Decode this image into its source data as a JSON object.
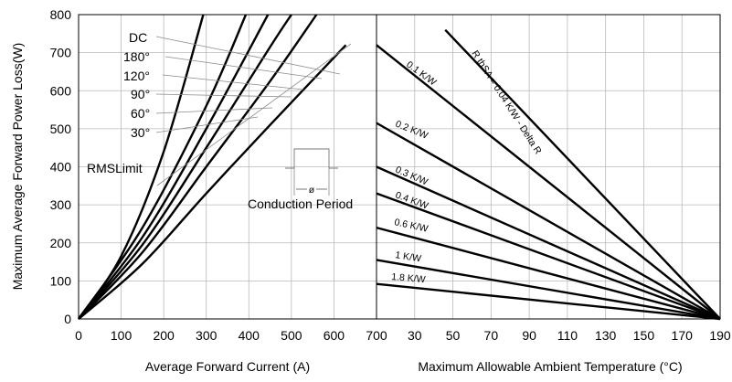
{
  "chart_data": [
    {
      "type": "line",
      "title": "",
      "xlabel": "Average Forward Current (A)",
      "ylabel": "Maximum Average Forward Power Loss(W)",
      "xlim": [
        0,
        700
      ],
      "ylim": [
        0,
        800
      ],
      "x_ticks": [
        "0",
        "100",
        "200",
        "300",
        "400",
        "500",
        "600",
        "700"
      ],
      "y_ticks": [
        "0",
        "100",
        "200",
        "300",
        "400",
        "500",
        "600",
        "700",
        "800"
      ],
      "grid": true,
      "series": [
        {
          "name": "30°",
          "x": [
            0,
            150,
            300,
            450,
            628
          ],
          "y": [
            0,
            145,
            330,
            510,
            720
          ]
        },
        {
          "name": "60°",
          "x": [
            0,
            150,
            300,
            450,
            559
          ],
          "y": [
            0,
            175,
            400,
            625,
            800
          ]
        },
        {
          "name": "90°",
          "x": [
            0,
            150,
            300,
            450,
            500
          ],
          "y": [
            0,
            195,
            450,
            715,
            800
          ]
        },
        {
          "name": "120°",
          "x": [
            0,
            150,
            300,
            445
          ],
          "y": [
            0,
            215,
            500,
            800
          ]
        },
        {
          "name": "180°",
          "x": [
            0,
            150,
            300,
            393
          ],
          "y": [
            0,
            240,
            560,
            800
          ]
        },
        {
          "name": "DC",
          "x": [
            0,
            100,
            200,
            293
          ],
          "y": [
            0,
            165,
            440,
            800
          ]
        }
      ],
      "annotations": [
        "DC",
        "180°",
        "120°",
        "90°",
        "60°",
        "30°",
        "RMSLimit",
        "Conduction Period",
        "ø"
      ]
    },
    {
      "type": "line",
      "title": "",
      "xlabel": "Maximum Allowable Ambient Temperature (°C)",
      "ylabel": "",
      "xlim": [
        10,
        190
      ],
      "x_ticks": [
        "30",
        "50",
        "70",
        "90",
        "110",
        "130",
        "150",
        "170",
        "190"
      ],
      "grid": true,
      "series": [
        {
          "name": "R thSA = 0.04 K/W - Delta R",
          "x": [
            46,
            190
          ],
          "y": [
            760,
            0
          ]
        },
        {
          "name": "0.1 K/W",
          "x": [
            10,
            190
          ],
          "y": [
            720,
            0
          ]
        },
        {
          "name": "0.2 K/W",
          "x": [
            10,
            190
          ],
          "y": [
            515,
            0
          ]
        },
        {
          "name": "0.3 K/W",
          "x": [
            10,
            190
          ],
          "y": [
            400,
            0
          ]
        },
        {
          "name": "0.4 K/W",
          "x": [
            10,
            190
          ],
          "y": [
            330,
            0
          ]
        },
        {
          "name": "0.6 K/W",
          "x": [
            10,
            190
          ],
          "y": [
            240,
            0
          ]
        },
        {
          "name": "1 K/W",
          "x": [
            10,
            190
          ],
          "y": [
            155,
            0
          ]
        },
        {
          "name": "1.8 K/W",
          "x": [
            10,
            190
          ],
          "y": [
            92,
            0
          ]
        }
      ]
    }
  ]
}
